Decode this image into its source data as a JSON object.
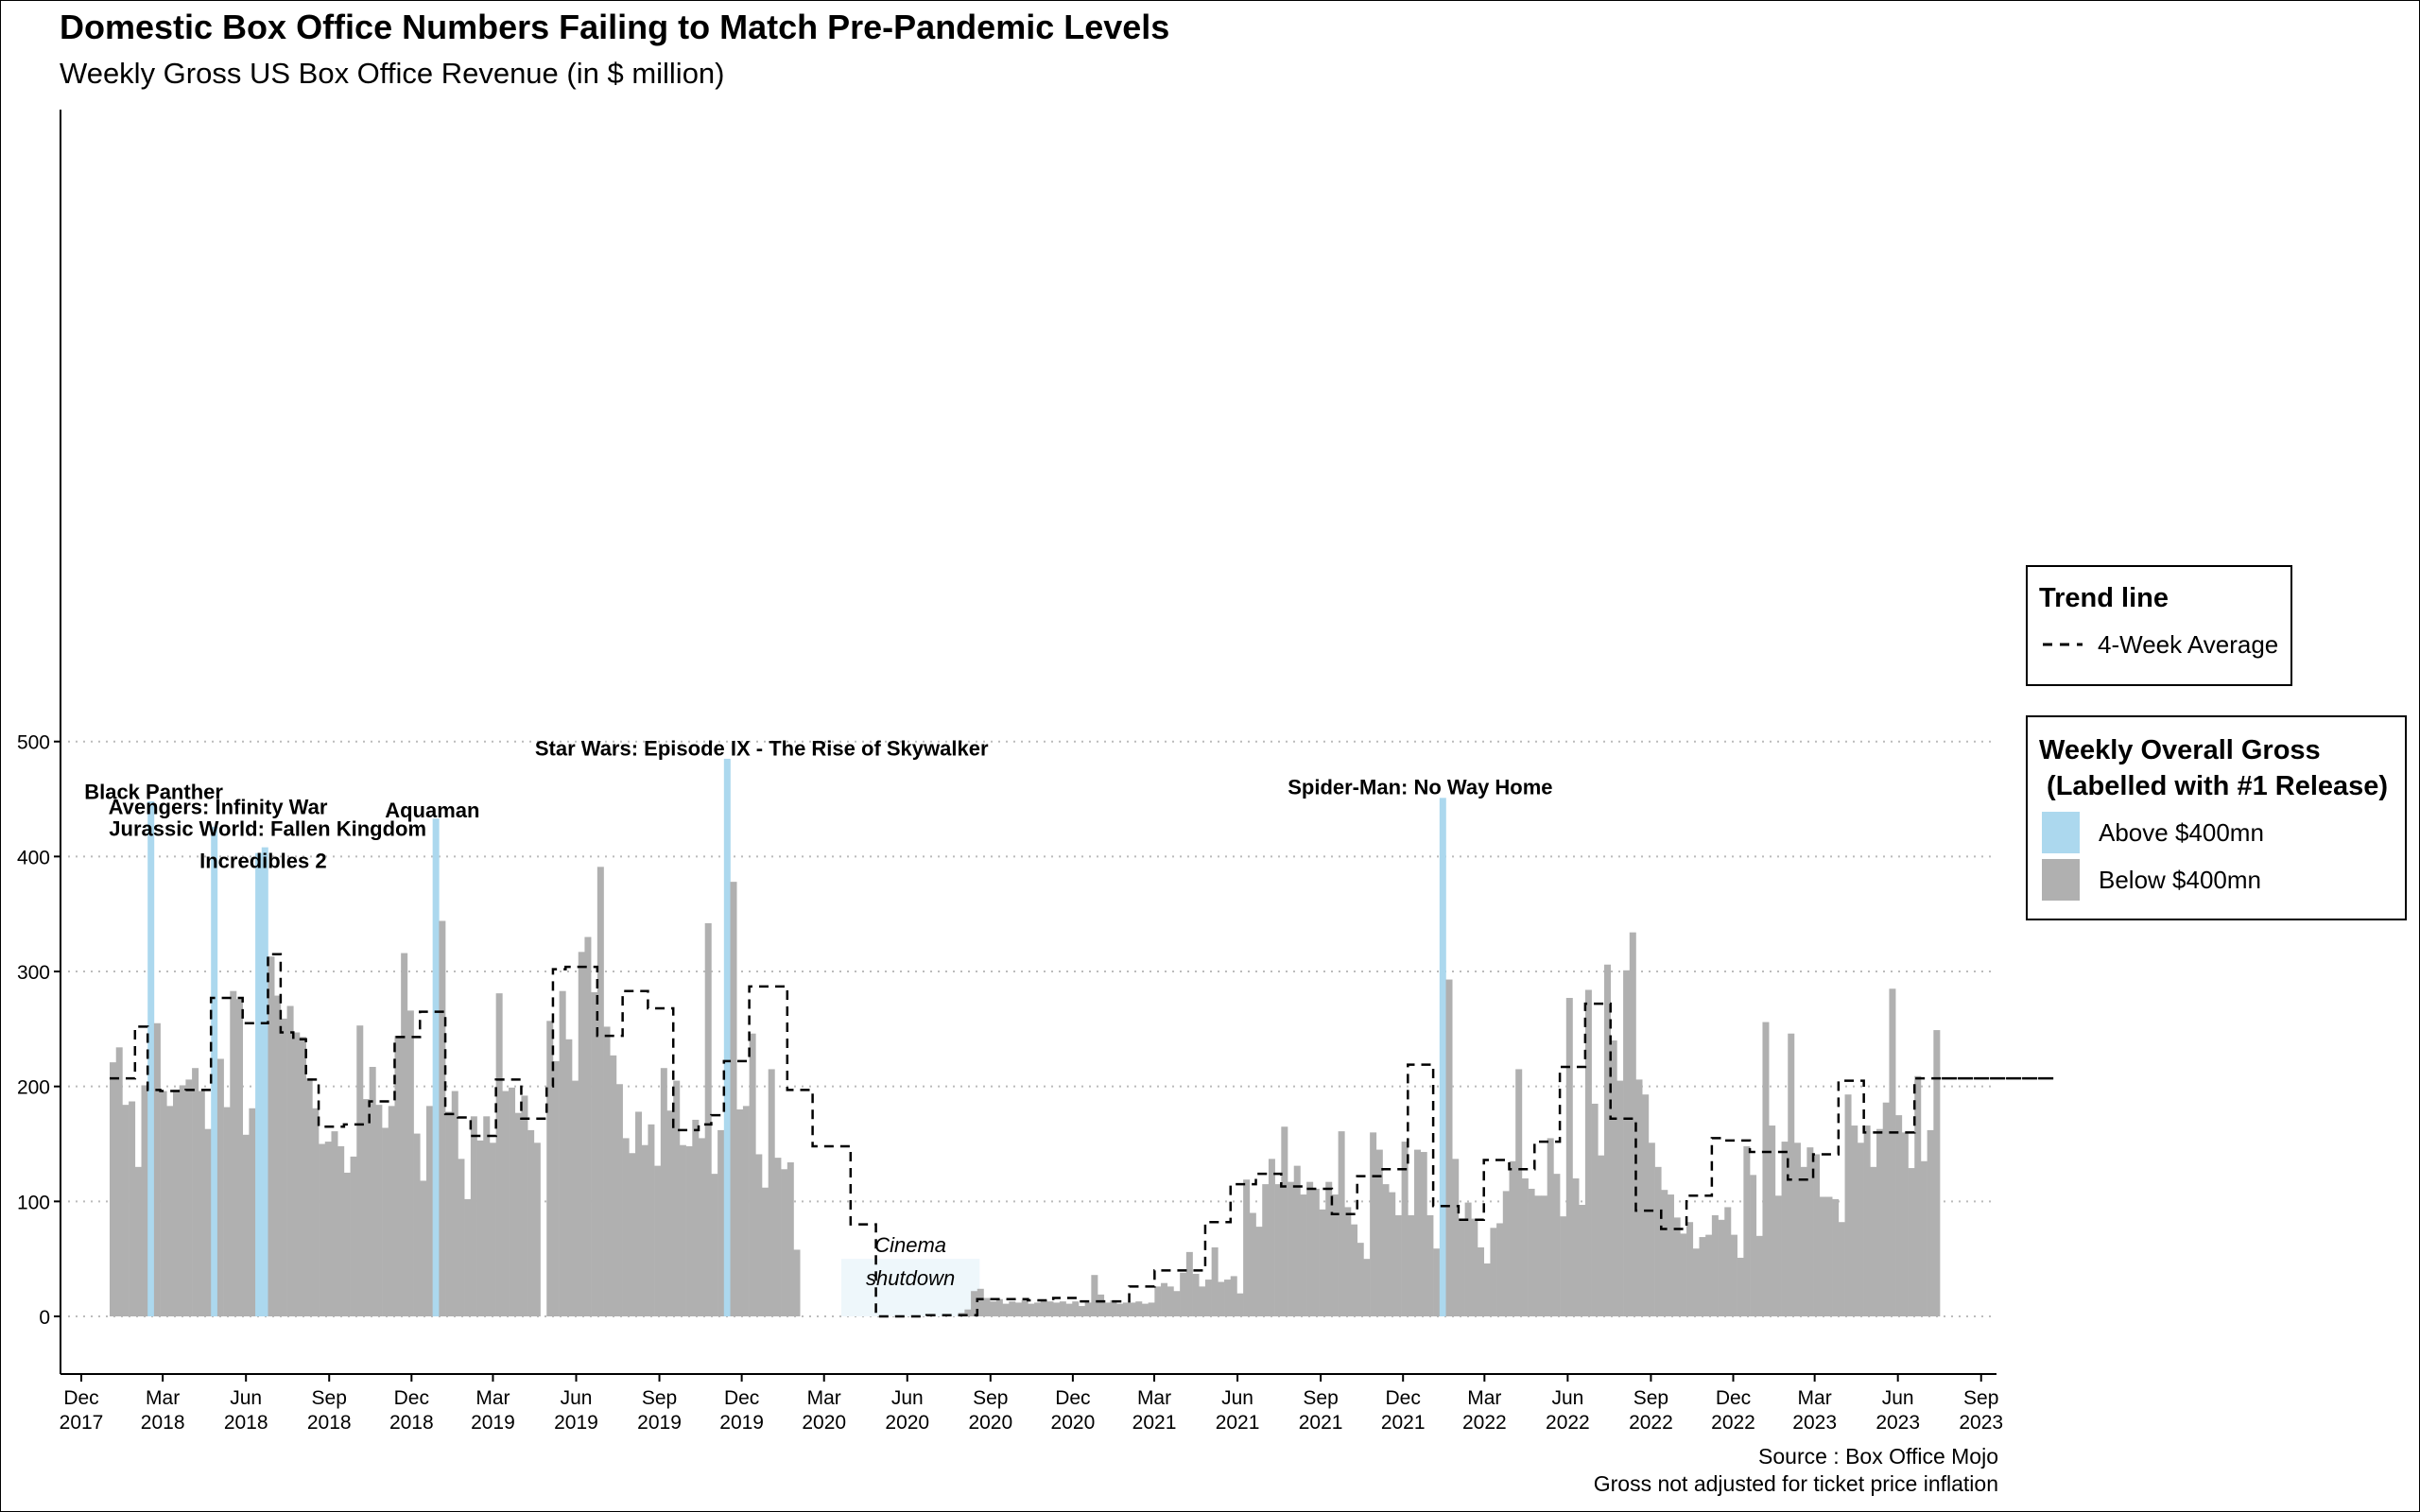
{
  "chart_data": {
    "type": "bar",
    "title": "Domestic Box Office Numbers Failing to Match Pre-Pandemic Levels",
    "subtitle": "Weekly Gross US Box Office Revenue (in $ million)",
    "xlabel": "",
    "ylabel": "",
    "ylim": [
      0,
      500
    ],
    "y_ticks": [
      0,
      100,
      200,
      300,
      400,
      500
    ],
    "grid": "horizontal dotted",
    "x_ticks": [
      {
        "date": "2017-12-01",
        "label": [
          "Dec",
          "2017"
        ]
      },
      {
        "date": "2018-03-01",
        "label": [
          "Mar",
          "2018"
        ]
      },
      {
        "date": "2018-06-01",
        "label": [
          "Jun",
          "2018"
        ]
      },
      {
        "date": "2018-09-01",
        "label": [
          "Sep",
          "2018"
        ]
      },
      {
        "date": "2018-12-01",
        "label": [
          "Dec",
          "2018"
        ]
      },
      {
        "date": "2019-03-01",
        "label": [
          "Mar",
          "2019"
        ]
      },
      {
        "date": "2019-06-01",
        "label": [
          "Jun",
          "2019"
        ]
      },
      {
        "date": "2019-09-01",
        "label": [
          "Sep",
          "2019"
        ]
      },
      {
        "date": "2019-12-01",
        "label": [
          "Dec",
          "2019"
        ]
      },
      {
        "date": "2020-03-01",
        "label": [
          "Mar",
          "2020"
        ]
      },
      {
        "date": "2020-06-01",
        "label": [
          "Jun",
          "2020"
        ]
      },
      {
        "date": "2020-09-01",
        "label": [
          "Sep",
          "2020"
        ]
      },
      {
        "date": "2020-12-01",
        "label": [
          "Dec",
          "2020"
        ]
      },
      {
        "date": "2021-03-01",
        "label": [
          "Mar",
          "2021"
        ]
      },
      {
        "date": "2021-06-01",
        "label": [
          "Jun",
          "2021"
        ]
      },
      {
        "date": "2021-09-01",
        "label": [
          "Sep",
          "2021"
        ]
      },
      {
        "date": "2021-12-01",
        "label": [
          "Dec",
          "2021"
        ]
      },
      {
        "date": "2022-03-01",
        "label": [
          "Mar",
          "2022"
        ]
      },
      {
        "date": "2022-06-01",
        "label": [
          "Jun",
          "2022"
        ]
      },
      {
        "date": "2022-09-01",
        "label": [
          "Sep",
          "2022"
        ]
      },
      {
        "date": "2022-12-01",
        "label": [
          "Dec",
          "2022"
        ]
      },
      {
        "date": "2023-03-01",
        "label": [
          "Mar",
          "2023"
        ]
      },
      {
        "date": "2023-06-01",
        "label": [
          "Jun",
          "2023"
        ]
      },
      {
        "date": "2023-09-01",
        "label": [
          "Sep",
          "2023"
        ]
      }
    ],
    "x_range": [
      "2017-11-08",
      "2023-09-18"
    ],
    "first_week": "2018-01-05",
    "week_step_days": 7,
    "threshold": 400,
    "weekly_gross": [
      221,
      234,
      184,
      187,
      130,
      201,
      448,
      255,
      196,
      183,
      197,
      201,
      206,
      216,
      196,
      163,
      426,
      224,
      182,
      283,
      276,
      158,
      181,
      403,
      408,
      313,
      279,
      259,
      270,
      247,
      243,
      207,
      181,
      150,
      152,
      161,
      148,
      125,
      139,
      253,
      189,
      217,
      184,
      164,
      183,
      244,
      316,
      266,
      159,
      118,
      183,
      433,
      344,
      178,
      196,
      137,
      102,
      174,
      153,
      174,
      151,
      281,
      196,
      199,
      177,
      192,
      162,
      151,
      0,
      257,
      222,
      283,
      241,
      205,
      317,
      330,
      282,
      391,
      252,
      227,
      202,
      155,
      142,
      178,
      149,
      167,
      131,
      216,
      179,
      205,
      149,
      148,
      171,
      155,
      342,
      124,
      162,
      485,
      378,
      180,
      183,
      246,
      141,
      112,
      215,
      138,
      128,
      134,
      58,
      0,
      0,
      0,
      0,
      0,
      0,
      0,
      0,
      0,
      0,
      0,
      0,
      0,
      0,
      0,
      0,
      0,
      0,
      0,
      0,
      0,
      0,
      0,
      0,
      0,
      3,
      6,
      22,
      24,
      16,
      13,
      15,
      11,
      13,
      12,
      14,
      11,
      12,
      14,
      13,
      12,
      13,
      11,
      13,
      9,
      12,
      36,
      19,
      12,
      14,
      11,
      12,
      12,
      13,
      11,
      12,
      26,
      29,
      26,
      22,
      38,
      56,
      37,
      26,
      32,
      60,
      30,
      32,
      35,
      20,
      119,
      90,
      78,
      115,
      137,
      115,
      165,
      117,
      131,
      106,
      117,
      111,
      93,
      117,
      106,
      161,
      95,
      80,
      64,
      50,
      160,
      145,
      115,
      108,
      88,
      152,
      88,
      145,
      143,
      88,
      59,
      451,
      293,
      137,
      83,
      99,
      85,
      60,
      46,
      77,
      81,
      109,
      135,
      215,
      120,
      111,
      105,
      105,
      155,
      124,
      87,
      277,
      120,
      97,
      284,
      185,
      140,
      306,
      240,
      205,
      301,
      334,
      206,
      193,
      151,
      130,
      110,
      106,
      86,
      72,
      82,
      59,
      69,
      71,
      88,
      84,
      95,
      71,
      51,
      148,
      123,
      70,
      256,
      166,
      105,
      152,
      246,
      151,
      130,
      147,
      141,
      104,
      104,
      102,
      82,
      193,
      166,
      151,
      166,
      130,
      163,
      186,
      285,
      175,
      160,
      129,
      209,
      135,
      162,
      249
    ],
    "trend_line": {
      "name": "4-Week Average",
      "week_index": [
        0,
        4,
        6,
        8,
        12,
        16,
        17,
        21,
        25,
        27,
        29,
        31,
        33,
        37,
        41,
        45,
        49,
        52,
        53,
        55,
        57,
        61,
        65,
        69,
        70,
        72,
        73,
        77,
        81,
        85,
        89,
        93,
        95,
        97,
        99,
        101,
        103,
        107,
        109,
        111,
        113,
        117,
        121,
        125,
        129,
        133,
        137,
        141,
        145,
        149,
        153,
        157,
        161,
        165,
        169,
        173,
        177,
        181,
        185,
        189,
        193,
        197,
        201,
        205,
        209,
        213,
        217,
        221,
        225,
        229,
        233,
        237,
        241,
        245,
        249,
        253,
        255,
        257,
        259,
        261,
        265,
        269,
        273,
        277,
        281,
        285,
        289,
        293,
        297,
        301,
        303,
        305,
        307
      ],
      "values": [
        207,
        252,
        197,
        196,
        197,
        277,
        277,
        255,
        315,
        247,
        241,
        206,
        165,
        167,
        187,
        243,
        265,
        265,
        176,
        173,
        157,
        206,
        172,
        200,
        302,
        304,
        304,
        244,
        283,
        268,
        162,
        167,
        175,
        222,
        222,
        287,
        287,
        197,
        197,
        148,
        148,
        80,
        0,
        0,
        1,
        1,
        15,
        15,
        14,
        16,
        13,
        13,
        26,
        40,
        40,
        82,
        115,
        124,
        113,
        111,
        89,
        122,
        128,
        219,
        96,
        84,
        136,
        128,
        152,
        217,
        272,
        172,
        92,
        76,
        105,
        155,
        153,
        153,
        143,
        143,
        119,
        141,
        205,
        160,
        160,
        207,
        207,
        207,
        207,
        207,
        207,
        207,
        207
      ]
    },
    "annotations": [
      {
        "text": "Black Panther",
        "date": "2018-02-19",
        "y": 450
      },
      {
        "text": "Avengers: Infinity War",
        "date": "2018-05-01",
        "y": 437
      },
      {
        "text": "Jurassic World: Fallen Kingdom",
        "date": "2018-06-25",
        "y": 418
      },
      {
        "text": "Incredibles 2",
        "date": "2018-06-20",
        "y": 390
      },
      {
        "text": "Aquaman",
        "date": "2018-12-24",
        "y": 434
      },
      {
        "text": "Star Wars: Episode IX - The Rise of Skywalker",
        "date": "2019-12-23",
        "y": 488
      },
      {
        "text": "Spider-Man: No Way Home",
        "date": "2021-12-20",
        "y": 454
      }
    ],
    "shutdown_region": {
      "from": "2020-03-20",
      "to": "2020-08-20",
      "ymax": 50,
      "label": [
        "Cinema",
        "shutdown"
      ]
    },
    "legend_placement": "right"
  },
  "legend": {
    "trend": {
      "title": "Trend line",
      "item": "4-Week Average"
    },
    "gross": {
      "title": "Weekly Overall Gross\n (Labelled with #1 Release)",
      "above": "Above $400mn",
      "below": "Below $400mn"
    }
  },
  "source": "Source : Box Office Mojo",
  "note": "Gross not adjusted for ticket price inflation",
  "colors": {
    "above": "#acd8ee",
    "below": "#b0b0b0",
    "trend": "#000000",
    "grid": "#bbbbbb",
    "shutdown": "#eef7fb"
  }
}
